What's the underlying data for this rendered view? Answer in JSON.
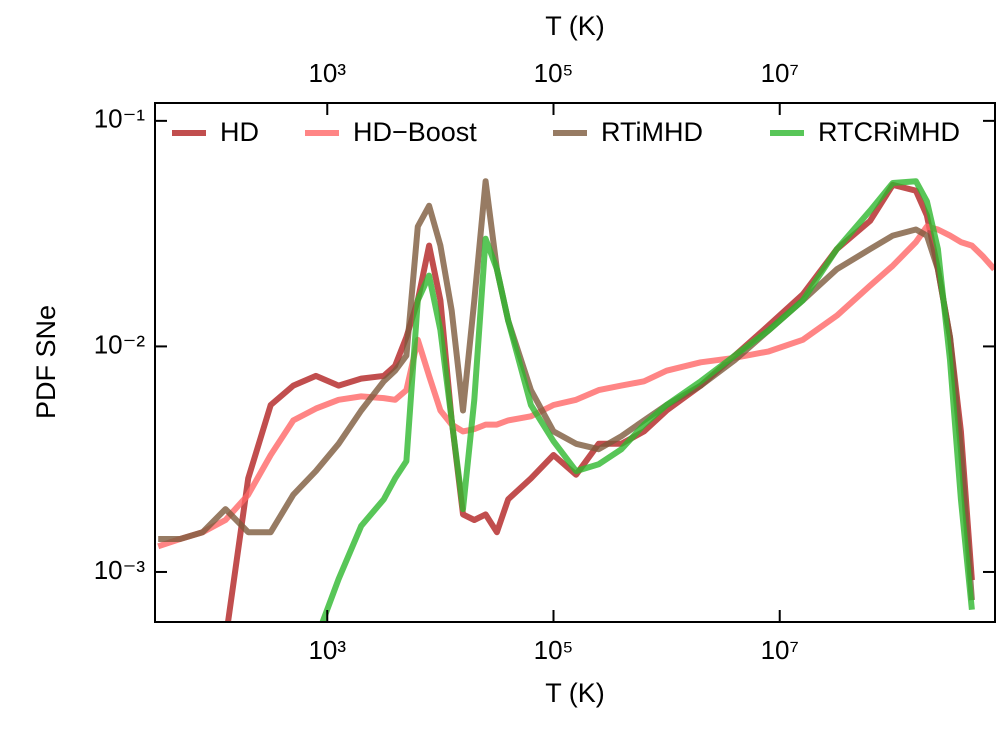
{
  "chart_data": {
    "type": "line",
    "xlabel": "T (K)",
    "ylabel": "PDF SNe",
    "top_xlabel": "T (K)",
    "xscale": "log",
    "yscale": "log",
    "xlim": [
      30,
      800000000
    ],
    "ylim": [
      0.0006,
      0.12
    ],
    "xticks": [
      {
        "value": 1000,
        "label": "10³"
      },
      {
        "value": 100000,
        "label": "10⁵"
      },
      {
        "value": 10000000,
        "label": "10⁷"
      }
    ],
    "top_xticks": [
      {
        "value": 1000,
        "label": "10³"
      },
      {
        "value": 100000,
        "label": "10⁵"
      },
      {
        "value": 10000000,
        "label": "10⁷"
      }
    ],
    "yticks": [
      {
        "value": 0.001,
        "label": "10⁻³"
      },
      {
        "value": 0.01,
        "label": "10⁻²"
      },
      {
        "value": 0.1,
        "label": "10⁻¹"
      }
    ],
    "legend": "top",
    "x": [
      32,
      50,
      79,
      126,
      200,
      316,
      501,
      794,
      1259,
      1995,
      3162,
      3981,
      5012,
      6310,
      7943,
      10000,
      12589,
      15849,
      19953,
      25119,
      31623,
      39811,
      63096,
      100000,
      158489,
      251189,
      398107,
      630957,
      1000000,
      2000000,
      4000000,
      8000000,
      16000000,
      32000000,
      63000000,
      100000000,
      160000000,
      200000000,
      250000000,
      320000000,
      400000000,
      500000000,
      630000000,
      790000000
    ],
    "series": [
      {
        "name": "HD",
        "color": "#b22222",
        "values": [
          null,
          null,
          null,
          0.0005,
          0.0026,
          0.0055,
          0.0067,
          0.0074,
          0.0067,
          0.0072,
          0.0074,
          0.0082,
          0.011,
          0.016,
          0.028,
          0.016,
          0.0047,
          0.0018,
          0.0017,
          0.0018,
          0.0015,
          0.0021,
          0.0026,
          0.0033,
          0.0027,
          0.0037,
          0.0037,
          0.0042,
          0.0052,
          0.0067,
          0.0091,
          0.0124,
          0.017,
          0.027,
          0.036,
          0.052,
          0.049,
          0.038,
          0.022,
          0.011,
          0.0042,
          0.00092,
          null,
          null
        ]
      },
      {
        "name": "HD−Boost",
        "color": "#ff6666",
        "values": [
          0.0013,
          0.0014,
          0.0015,
          0.0017,
          0.0022,
          0.0033,
          0.0047,
          0.0053,
          0.0058,
          0.006,
          0.0059,
          0.0058,
          0.0064,
          0.0107,
          0.0074,
          0.0052,
          0.0045,
          0.0042,
          0.0043,
          0.0045,
          0.0045,
          0.0047,
          0.0049,
          0.0055,
          0.0058,
          0.0064,
          0.0067,
          0.007,
          0.0078,
          0.0085,
          0.0089,
          0.0095,
          0.0107,
          0.0137,
          0.0186,
          0.0228,
          0.029,
          0.034,
          0.033,
          0.031,
          0.029,
          0.028,
          0.025,
          0.022
        ]
      },
      {
        "name": "RTiMHD",
        "color": "#7d5a3c",
        "values": [
          0.0014,
          0.0014,
          0.0015,
          0.0019,
          0.0015,
          0.0015,
          0.0022,
          0.0028,
          0.0037,
          0.0052,
          0.007,
          0.0078,
          0.0091,
          0.034,
          0.042,
          0.028,
          0.0144,
          0.0052,
          0.016,
          0.054,
          0.022,
          0.013,
          0.0064,
          0.0042,
          0.0037,
          0.0035,
          0.004,
          0.0047,
          0.0055,
          0.0067,
          0.0087,
          0.0118,
          0.016,
          0.022,
          0.027,
          0.031,
          0.033,
          0.031,
          0.022,
          0.011,
          0.0035,
          0.00075,
          null,
          null
        ]
      },
      {
        "name": "RTCRiMHD",
        "color": "#2eb82e",
        "values": [
          null,
          null,
          null,
          null,
          null,
          null,
          null,
          0.0005,
          0.00093,
          0.0016,
          0.0021,
          0.0026,
          0.0031,
          0.016,
          0.0206,
          0.0118,
          0.0047,
          0.0019,
          0.0058,
          0.03,
          0.022,
          0.013,
          0.0055,
          0.0038,
          0.0028,
          0.003,
          0.0035,
          0.0045,
          0.0055,
          0.007,
          0.0091,
          0.0118,
          0.016,
          0.027,
          0.04,
          0.053,
          0.054,
          0.044,
          0.027,
          0.0087,
          0.0021,
          0.00068,
          null,
          null
        ]
      }
    ]
  }
}
